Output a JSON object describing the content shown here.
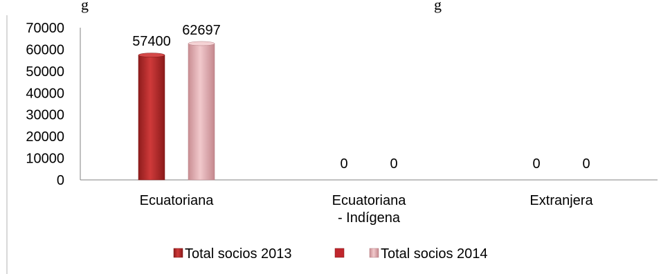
{
  "chart_data": {
    "type": "bar",
    "title": "",
    "caption_fragment_left": "g",
    "caption_fragment_right": "g",
    "categories": [
      [
        "Ecuatoriana"
      ],
      [
        "Ecuatoriana",
        "- Indígena"
      ],
      [
        "Extranjera"
      ]
    ],
    "series": [
      {
        "name": "Total socios 2013",
        "values": [
          57400,
          0,
          0
        ],
        "color": "#b92b2b"
      },
      {
        "name": "Total socios 2014",
        "values": [
          62697,
          0,
          0
        ],
        "color": "#e8b3b6"
      }
    ],
    "data_labels": [
      [
        "57400",
        "0",
        "0"
      ],
      [
        "62697",
        "0",
        "0"
      ]
    ],
    "ylim": [
      0,
      70000
    ],
    "yticks": [
      "0",
      "10000",
      "20000",
      "30000",
      "40000",
      "50000",
      "60000",
      "70000"
    ],
    "grid": false,
    "legend_position": "bottom",
    "legend_extra_marker_color": "#c0262d"
  }
}
